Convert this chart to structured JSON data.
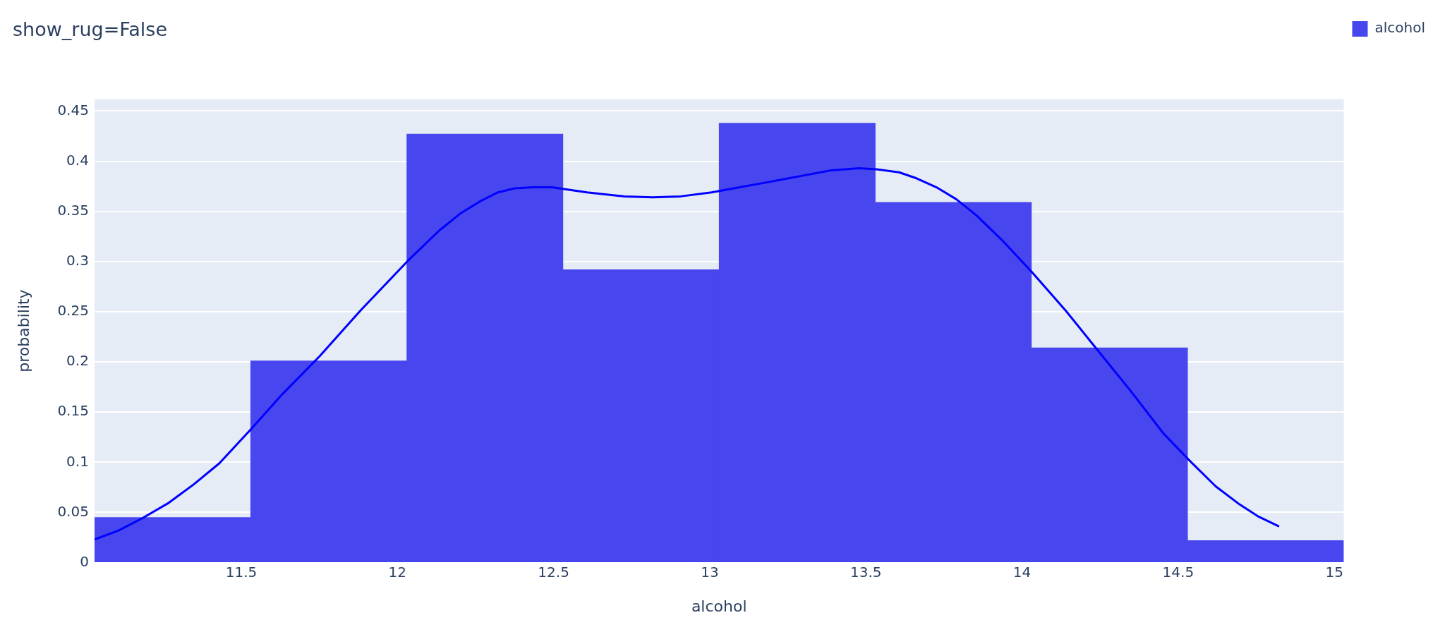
{
  "chart_data": {
    "type": "histogram",
    "title": "show_rug=False",
    "xlabel": "alcohol",
    "ylabel": "probability",
    "bins": [
      11.03,
      11.53,
      12.03,
      12.53,
      13.03,
      13.53,
      14.03,
      14.53,
      15.03
    ],
    "series": [
      {
        "name": "alcohol",
        "color": "#4846ef",
        "values": [
          0.045,
          0.201,
          0.427,
          0.292,
          0.438,
          0.359,
          0.214,
          0.022
        ]
      },
      {
        "type": "line",
        "color": "#0000ff",
        "x": [
          11.03,
          11.107,
          11.182,
          11.265,
          11.348,
          11.43,
          11.531,
          11.632,
          11.752,
          11.887,
          12.034,
          12.134,
          12.202,
          12.27,
          12.322,
          12.375,
          12.435,
          12.495,
          12.607,
          12.727,
          12.817,
          12.907,
          13.006,
          13.166,
          13.39,
          13.478,
          13.534,
          13.606,
          13.662,
          13.726,
          13.79,
          13.854,
          13.934,
          14.03,
          14.14,
          14.236,
          14.348,
          14.452,
          14.532,
          14.62,
          14.692,
          14.756,
          14.823
        ],
        "values": [
          0.023,
          0.032,
          0.044,
          0.059,
          0.078,
          0.099,
          0.133,
          0.168,
          0.206,
          0.253,
          0.301,
          0.331,
          0.348,
          0.361,
          0.369,
          0.373,
          0.374,
          0.374,
          0.369,
          0.365,
          0.364,
          0.365,
          0.369,
          0.378,
          0.391,
          0.393,
          0.392,
          0.389,
          0.383,
          0.374,
          0.362,
          0.346,
          0.322,
          0.29,
          0.251,
          0.214,
          0.171,
          0.129,
          0.103,
          0.076,
          0.059,
          0.046,
          0.036
        ]
      }
    ],
    "xlim": [
      11.03,
      15.03
    ],
    "xticks": [
      11.5,
      12,
      12.5,
      13,
      13.5,
      14,
      14.5,
      15
    ],
    "ylim": [
      0,
      0.462
    ],
    "yticks": [
      0,
      0.05,
      0.1,
      0.15,
      0.2,
      0.25,
      0.3,
      0.35,
      0.4,
      0.45
    ],
    "grid": "y",
    "legend": "top right"
  }
}
